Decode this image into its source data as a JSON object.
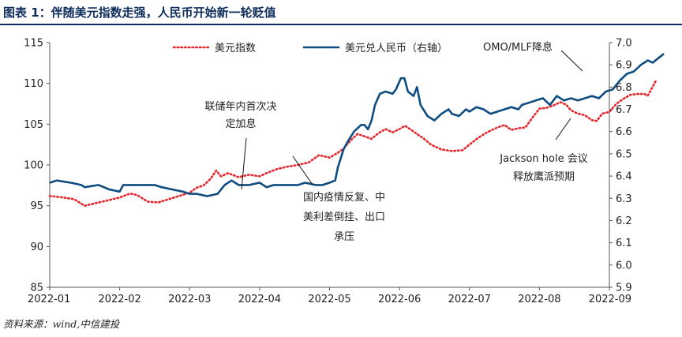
{
  "header": {
    "title": "图表 1：伴随美元指数走强，人民币开始新一轮贬值"
  },
  "footer": {
    "source": "资料来源：wind,中信建投"
  },
  "chart_data": {
    "type": "line",
    "x_labels": [
      "2022-01",
      "2022-02",
      "2022-03",
      "2022-04",
      "2022-05",
      "2022-06",
      "2022-07",
      "2022-08",
      "2022-09"
    ],
    "y_left": {
      "ticks": [
        85,
        90,
        95,
        100,
        105,
        110,
        115
      ],
      "range": [
        85,
        115
      ]
    },
    "y_right": {
      "ticks": [
        "5.9",
        "6.0",
        "6.1",
        "6.2",
        "6.3",
        "6.4",
        "6.5",
        "6.6",
        "6.7",
        "6.8",
        "6.9",
        "7.0"
      ],
      "range": [
        5.9,
        7.0
      ],
      "label": "右轴"
    },
    "legend": [
      "美元指数",
      "美元兑人民币（右轴）"
    ],
    "series": [
      {
        "name": "美元指数",
        "axis": "left",
        "color": "#e8262b",
        "style": "dotted",
        "points": [
          [
            0.0,
            96.2
          ],
          [
            0.2,
            96.0
          ],
          [
            0.35,
            95.8
          ],
          [
            0.5,
            95.0
          ],
          [
            0.65,
            95.3
          ],
          [
            0.8,
            95.6
          ],
          [
            1.0,
            96.0
          ],
          [
            1.15,
            96.5
          ],
          [
            1.25,
            96.3
          ],
          [
            1.4,
            95.5
          ],
          [
            1.55,
            95.4
          ],
          [
            1.7,
            95.8
          ],
          [
            1.85,
            96.2
          ],
          [
            2.0,
            96.6
          ],
          [
            2.1,
            97.2
          ],
          [
            2.2,
            97.5
          ],
          [
            2.3,
            98.3
          ],
          [
            2.38,
            99.3
          ],
          [
            2.45,
            98.6
          ],
          [
            2.55,
            99.0
          ],
          [
            2.7,
            98.5
          ],
          [
            2.85,
            98.8
          ],
          [
            3.0,
            98.6
          ],
          [
            3.1,
            99.0
          ],
          [
            3.25,
            99.5
          ],
          [
            3.4,
            99.8
          ],
          [
            3.55,
            100.0
          ],
          [
            3.7,
            100.3
          ],
          [
            3.85,
            101.2
          ],
          [
            4.0,
            100.9
          ],
          [
            4.12,
            101.5
          ],
          [
            4.2,
            102.0
          ],
          [
            4.3,
            103.0
          ],
          [
            4.4,
            103.8
          ],
          [
            4.5,
            103.5
          ],
          [
            4.6,
            103.2
          ],
          [
            4.7,
            103.9
          ],
          [
            4.8,
            104.4
          ],
          [
            4.9,
            104.0
          ],
          [
            5.0,
            104.4
          ],
          [
            5.08,
            104.8
          ],
          [
            5.15,
            104.4
          ],
          [
            5.25,
            103.8
          ],
          [
            5.35,
            103.2
          ],
          [
            5.45,
            102.5
          ],
          [
            5.6,
            101.9
          ],
          [
            5.75,
            101.7
          ],
          [
            5.9,
            101.8
          ],
          [
            6.0,
            102.5
          ],
          [
            6.12,
            103.3
          ],
          [
            6.25,
            104.0
          ],
          [
            6.4,
            104.6
          ],
          [
            6.5,
            104.9
          ],
          [
            6.6,
            104.3
          ],
          [
            6.7,
            104.5
          ],
          [
            6.8,
            104.6
          ],
          [
            6.9,
            105.8
          ],
          [
            7.0,
            106.9
          ],
          [
            7.1,
            107.0
          ],
          [
            7.2,
            107.3
          ],
          [
            7.3,
            107.7
          ],
          [
            7.38,
            107.4
          ],
          [
            7.45,
            106.7
          ],
          [
            7.55,
            106.3
          ],
          [
            7.65,
            106.1
          ],
          [
            7.75,
            105.5
          ],
          [
            7.82,
            105.4
          ],
          [
            7.9,
            106.3
          ],
          [
            8.0,
            106.5
          ],
          [
            8.1,
            107.5
          ],
          [
            8.2,
            108.1
          ],
          [
            8.3,
            108.6
          ],
          [
            8.4,
            108.7
          ],
          [
            8.5,
            108.7
          ],
          [
            8.55,
            108.5
          ],
          [
            8.62,
            109.6
          ],
          [
            8.67,
            110.4
          ]
        ]
      },
      {
        "name": "美元兑人民币（右轴）",
        "axis": "right",
        "color": "#0f4c81",
        "style": "solid",
        "points": [
          [
            0.0,
            6.37
          ],
          [
            0.1,
            6.38
          ],
          [
            0.3,
            6.37
          ],
          [
            0.45,
            6.36
          ],
          [
            0.5,
            6.35
          ],
          [
            0.7,
            6.36
          ],
          [
            0.85,
            6.34
          ],
          [
            1.0,
            6.33
          ],
          [
            1.05,
            6.36
          ],
          [
            1.2,
            6.36
          ],
          [
            1.35,
            6.36
          ],
          [
            1.5,
            6.36
          ],
          [
            1.6,
            6.35
          ],
          [
            1.75,
            6.34
          ],
          [
            1.9,
            6.33
          ],
          [
            2.0,
            6.32
          ],
          [
            2.1,
            6.32
          ],
          [
            2.25,
            6.31
          ],
          [
            2.4,
            6.32
          ],
          [
            2.5,
            6.36
          ],
          [
            2.6,
            6.38
          ],
          [
            2.7,
            6.36
          ],
          [
            2.85,
            6.36
          ],
          [
            3.0,
            6.37
          ],
          [
            3.1,
            6.35
          ],
          [
            3.2,
            6.36
          ],
          [
            3.35,
            6.36
          ],
          [
            3.45,
            6.36
          ],
          [
            3.55,
            6.36
          ],
          [
            3.65,
            6.37
          ],
          [
            3.8,
            6.36
          ],
          [
            3.9,
            6.36
          ],
          [
            4.0,
            6.37
          ],
          [
            4.08,
            6.38
          ],
          [
            4.12,
            6.44
          ],
          [
            4.2,
            6.52
          ],
          [
            4.25,
            6.55
          ],
          [
            4.35,
            6.6
          ],
          [
            4.45,
            6.63
          ],
          [
            4.5,
            6.63
          ],
          [
            4.55,
            6.61
          ],
          [
            4.6,
            6.65
          ],
          [
            4.65,
            6.72
          ],
          [
            4.72,
            6.77
          ],
          [
            4.8,
            6.78
          ],
          [
            4.9,
            6.77
          ],
          [
            4.95,
            6.79
          ],
          [
            5.02,
            6.84
          ],
          [
            5.07,
            6.84
          ],
          [
            5.12,
            6.78
          ],
          [
            5.2,
            6.76
          ],
          [
            5.25,
            6.8
          ],
          [
            5.3,
            6.72
          ],
          [
            5.4,
            6.67
          ],
          [
            5.5,
            6.65
          ],
          [
            5.6,
            6.68
          ],
          [
            5.7,
            6.7
          ],
          [
            5.75,
            6.68
          ],
          [
            5.85,
            6.67
          ],
          [
            5.95,
            6.7
          ],
          [
            6.0,
            6.69
          ],
          [
            6.1,
            6.71
          ],
          [
            6.2,
            6.7
          ],
          [
            6.3,
            6.68
          ],
          [
            6.4,
            6.69
          ],
          [
            6.5,
            6.7
          ],
          [
            6.6,
            6.71
          ],
          [
            6.7,
            6.7
          ],
          [
            6.75,
            6.72
          ],
          [
            6.85,
            6.73
          ],
          [
            6.95,
            6.74
          ],
          [
            7.05,
            6.75
          ],
          [
            7.15,
            6.72
          ],
          [
            7.25,
            6.76
          ],
          [
            7.35,
            6.74
          ],
          [
            7.45,
            6.75
          ],
          [
            7.55,
            6.74
          ],
          [
            7.65,
            6.75
          ],
          [
            7.75,
            6.76
          ],
          [
            7.85,
            6.75
          ],
          [
            7.95,
            6.78
          ],
          [
            8.05,
            6.79
          ],
          [
            8.15,
            6.83
          ],
          [
            8.25,
            6.86
          ],
          [
            8.35,
            6.87
          ],
          [
            8.45,
            6.9
          ],
          [
            8.55,
            6.92
          ],
          [
            8.62,
            6.91
          ],
          [
            8.7,
            6.93
          ],
          [
            8.78,
            6.95
          ]
        ]
      }
    ],
    "annotations": [
      {
        "lines": [
          "联储年内首次决",
          "定加息"
        ]
      },
      {
        "lines": [
          "国内疫情反复、中",
          "美利差倒挂、出口",
          "承压"
        ]
      },
      {
        "lines": [
          "OMO/MLF降息"
        ]
      },
      {
        "lines": [
          "Jackson hole 会议",
          "释放鹰派预期"
        ]
      }
    ],
    "grid": false,
    "legend_position": "top"
  }
}
